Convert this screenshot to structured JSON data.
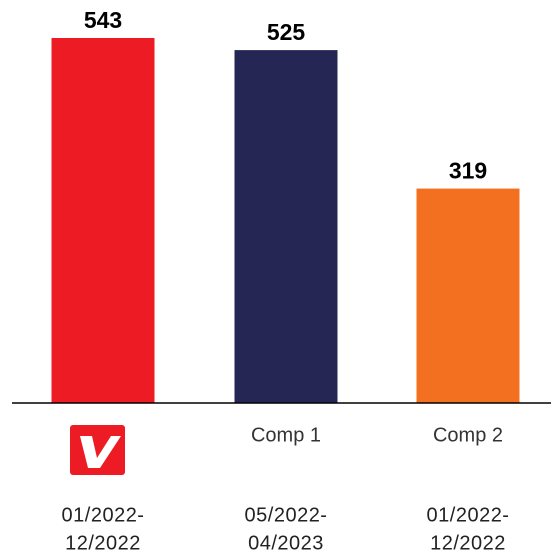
{
  "chart_data": {
    "type": "bar",
    "categories": [
      null,
      "Comp 1",
      "Comp 2"
    ],
    "values": [
      543,
      525,
      319
    ],
    "colors": [
      "#ed1c24",
      "#262654",
      "#f37021"
    ],
    "periods": [
      [
        "01/2022-",
        "12/2022"
      ],
      [
        "05/2022-",
        "04/2023"
      ],
      [
        "01/2022-",
        "12/2022"
      ]
    ]
  }
}
